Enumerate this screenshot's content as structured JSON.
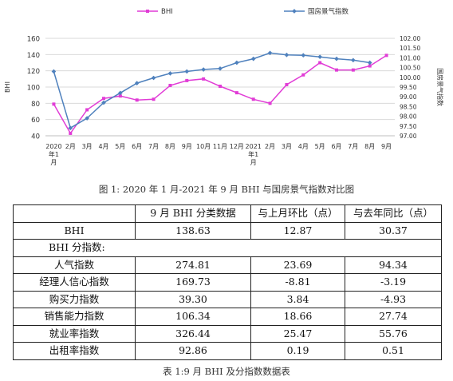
{
  "chart_data": {
    "type": "line",
    "legend": [
      "BHI",
      "国房景气指数"
    ],
    "legend_position": "top",
    "left_axis_label": "BHI",
    "right_axis_label": "国房景气指数",
    "left_ylim": [
      40,
      160
    ],
    "left_ticks": [
      "40",
      "60",
      "80",
      "100",
      "120",
      "140",
      "160"
    ],
    "right_ylim": [
      97.0,
      102.0
    ],
    "right_ticks": [
      "97.00",
      "97.50",
      "98.00",
      "98.50",
      "99.00",
      "99.50",
      "100.00",
      "100.50",
      "101.00",
      "101.50",
      "102.00"
    ],
    "grid": "horizontal",
    "categories": [
      [
        "2020",
        "年1",
        "月"
      ],
      [
        "2月"
      ],
      [
        "3月"
      ],
      [
        "4月"
      ],
      [
        "5月"
      ],
      [
        "6月"
      ],
      [
        "7月"
      ],
      [
        "8月"
      ],
      [
        "9月"
      ],
      [
        "10月"
      ],
      [
        "11月"
      ],
      [
        "12月"
      ],
      [
        "2021",
        "年1",
        "月"
      ],
      [
        "2月"
      ],
      [
        "3月"
      ],
      [
        "4月"
      ],
      [
        "5月"
      ],
      [
        "6月"
      ],
      [
        "7月"
      ],
      [
        "8月"
      ],
      [
        "9月"
      ]
    ],
    "series": [
      {
        "name": "BHI",
        "axis": "left",
        "color": "#e13cd6",
        "marker": "square",
        "values": [
          79,
          43,
          72,
          86,
          89,
          84,
          85,
          102,
          108,
          110,
          101,
          93,
          85,
          80,
          103,
          115,
          130,
          121,
          121,
          126,
          139
        ]
      },
      {
        "name": "国房景气指数",
        "axis": "right",
        "color": "#4f81bd",
        "marker": "diamond",
        "values": [
          100.3,
          97.4,
          97.9,
          98.7,
          99.2,
          99.7,
          99.97,
          100.2,
          100.3,
          100.4,
          100.45,
          100.75,
          100.95,
          101.25,
          101.15,
          101.13,
          101.05,
          100.95,
          100.88,
          100.75,
          null
        ]
      }
    ]
  },
  "figure_caption": "图 1: 2020 年 1 月-2021 年 9 月 BHI 与国房景气指数对比图",
  "table": {
    "headers": [
      "",
      "9 月 BHI 分类数据",
      "与上月环比（点）",
      "与去年同比（点）"
    ],
    "rows": [
      {
        "label": "BHI",
        "values": [
          "138.63",
          "12.87",
          "30.37"
        ]
      }
    ],
    "section_label": "BHI 分指数:",
    "sub_rows": [
      {
        "label": "人气指数",
        "values": [
          "274.81",
          "23.69",
          "94.34"
        ]
      },
      {
        "label": "经理人信心指数",
        "values": [
          "169.73",
          "-8.81",
          "-3.19"
        ]
      },
      {
        "label": "购买力指数",
        "values": [
          "39.30",
          "3.84",
          "-4.93"
        ]
      },
      {
        "label": "销售能力指数",
        "values": [
          "106.34",
          "18.66",
          "27.74"
        ]
      },
      {
        "label": "就业率指数",
        "values": [
          "326.44",
          "25.47",
          "55.76"
        ]
      },
      {
        "label": "出租率指数",
        "values": [
          "92.86",
          "0.19",
          "0.51"
        ]
      }
    ]
  },
  "table_caption": "表 1:9 月 BHI 及分指数数据表"
}
